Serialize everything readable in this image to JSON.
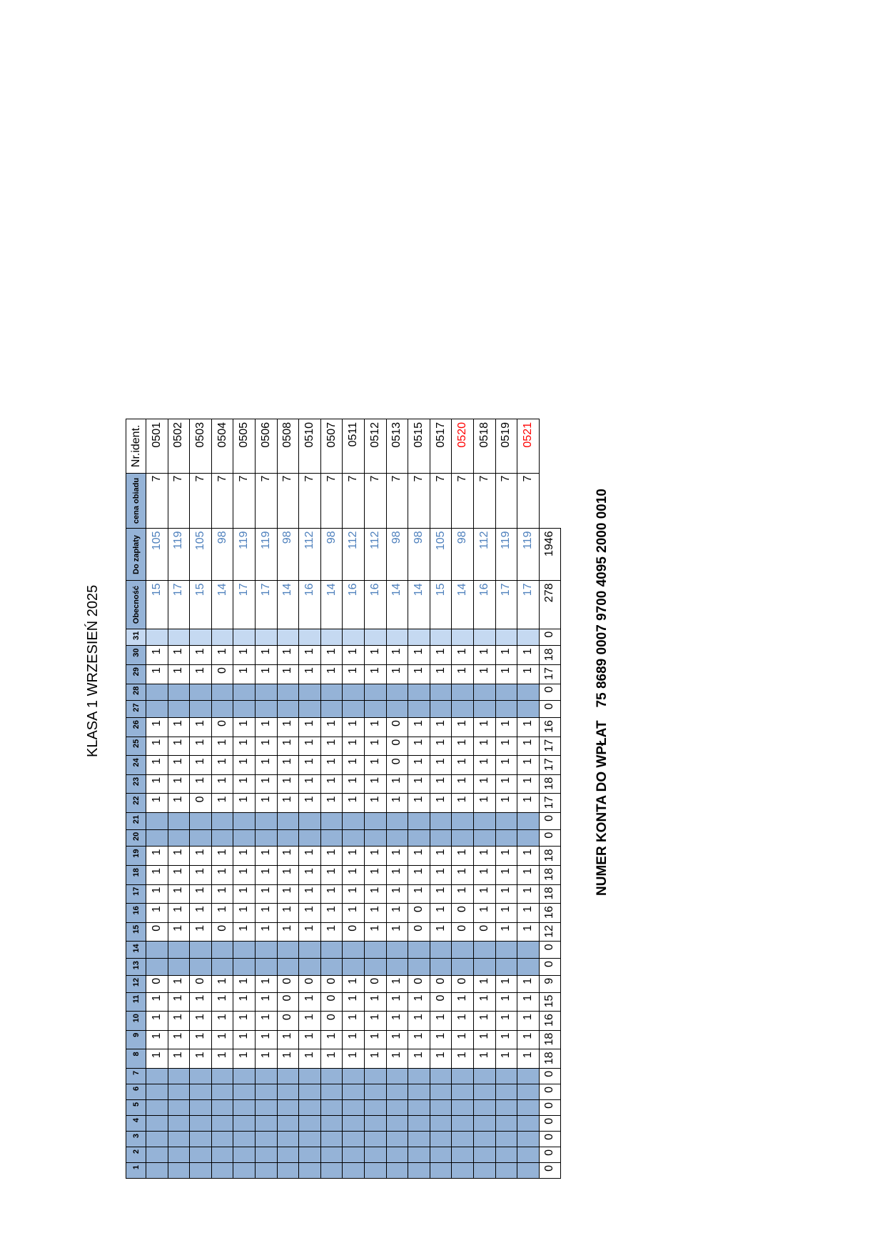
{
  "title": "KLASA 1 WRZESIEŃ 2025",
  "account": {
    "label": "NUMER KONTA  DO WPŁAT",
    "number": "75 8689 0007 9700 4095 2000 0010"
  },
  "colors": {
    "header_blue": "#95b3d7",
    "weekend_blue": "#95b3d7",
    "light_blue": "#c5d9f1",
    "value_blue": "#4f81bd",
    "highlight_red": "#ff0000"
  },
  "table": {
    "headers": {
      "days": [
        "1",
        "2",
        "3",
        "4",
        "5",
        "6",
        "7",
        "8",
        "9",
        "10",
        "11",
        "12",
        "13",
        "14",
        "15",
        "16",
        "17",
        "18",
        "19",
        "20",
        "21",
        "22",
        "23",
        "24",
        "25",
        "26",
        "27",
        "28",
        "29",
        "30",
        "31"
      ],
      "obecnosc": "Obecność",
      "do_zaplaty": "Do zapłaty",
      "cena_obiadu": "cena obiadu",
      "nr_ident": "Nr.ident."
    },
    "off_days": [
      1,
      2,
      3,
      4,
      5,
      6,
      7,
      13,
      14,
      20,
      21,
      27,
      28
    ],
    "light_days": [
      31
    ],
    "rows": [
      {
        "days": [
          "",
          "",
          "",
          "",
          "",
          "",
          "",
          "1",
          "1",
          "1",
          "1",
          "0",
          "",
          "",
          "0",
          "1",
          "1",
          "1",
          "1",
          "",
          "",
          "1",
          "1",
          "1",
          "1",
          "1",
          "",
          "",
          "1",
          "1",
          ""
        ],
        "obecnosc": "15",
        "do_zaplaty": "105",
        "cena": "7",
        "nr": "0501",
        "nr_red": false
      },
      {
        "days": [
          "",
          "",
          "",
          "",
          "",
          "",
          "",
          "1",
          "1",
          "1",
          "1",
          "1",
          "",
          "",
          "1",
          "1",
          "1",
          "1",
          "1",
          "",
          "",
          "1",
          "1",
          "1",
          "1",
          "1",
          "",
          "",
          "1",
          "1",
          ""
        ],
        "obecnosc": "17",
        "do_zaplaty": "119",
        "cena": "7",
        "nr": "0502",
        "nr_red": false
      },
      {
        "days": [
          "",
          "",
          "",
          "",
          "",
          "",
          "",
          "1",
          "1",
          "1",
          "1",
          "0",
          "",
          "",
          "1",
          "1",
          "1",
          "1",
          "1",
          "",
          "",
          "0",
          "1",
          "1",
          "1",
          "1",
          "",
          "",
          "1",
          "1",
          ""
        ],
        "obecnosc": "15",
        "do_zaplaty": "105",
        "cena": "7",
        "nr": "0503",
        "nr_red": false
      },
      {
        "days": [
          "",
          "",
          "",
          "",
          "",
          "",
          "",
          "1",
          "1",
          "1",
          "1",
          "1",
          "",
          "",
          "0",
          "1",
          "1",
          "1",
          "1",
          "",
          "",
          "1",
          "1",
          "1",
          "1",
          "0",
          "",
          "",
          "0",
          "1",
          ""
        ],
        "obecnosc": "14",
        "do_zaplaty": "98",
        "cena": "7",
        "nr": "0504",
        "nr_red": false
      },
      {
        "days": [
          "",
          "",
          "",
          "",
          "",
          "",
          "",
          "1",
          "1",
          "1",
          "1",
          "1",
          "",
          "",
          "1",
          "1",
          "1",
          "1",
          "1",
          "",
          "",
          "1",
          "1",
          "1",
          "1",
          "1",
          "",
          "",
          "1",
          "1",
          ""
        ],
        "obecnosc": "17",
        "do_zaplaty": "119",
        "cena": "7",
        "nr": "0505",
        "nr_red": false
      },
      {
        "days": [
          "",
          "",
          "",
          "",
          "",
          "",
          "",
          "1",
          "1",
          "1",
          "1",
          "1",
          "",
          "",
          "1",
          "1",
          "1",
          "1",
          "1",
          "",
          "",
          "1",
          "1",
          "1",
          "1",
          "1",
          "",
          "",
          "1",
          "1",
          ""
        ],
        "obecnosc": "17",
        "do_zaplaty": "119",
        "cena": "7",
        "nr": "0506",
        "nr_red": false
      },
      {
        "days": [
          "",
          "",
          "",
          "",
          "",
          "",
          "",
          "1",
          "1",
          "0",
          "0",
          "0",
          "",
          "",
          "1",
          "1",
          "1",
          "1",
          "1",
          "",
          "",
          "1",
          "1",
          "1",
          "1",
          "1",
          "",
          "",
          "1",
          "1",
          ""
        ],
        "obecnosc": "14",
        "do_zaplaty": "98",
        "cena": "7",
        "nr": "0508",
        "nr_red": false
      },
      {
        "days": [
          "",
          "",
          "",
          "",
          "",
          "",
          "",
          "1",
          "1",
          "1",
          "1",
          "0",
          "",
          "",
          "1",
          "1",
          "1",
          "1",
          "1",
          "",
          "",
          "1",
          "1",
          "1",
          "1",
          "1",
          "",
          "",
          "1",
          "1",
          ""
        ],
        "obecnosc": "16",
        "do_zaplaty": "112",
        "cena": "7",
        "nr": "0510",
        "nr_red": false
      },
      {
        "days": [
          "",
          "",
          "",
          "",
          "",
          "",
          "",
          "1",
          "1",
          "0",
          "0",
          "0",
          "",
          "",
          "1",
          "1",
          "1",
          "1",
          "1",
          "",
          "",
          "1",
          "1",
          "1",
          "1",
          "1",
          "",
          "",
          "1",
          "1",
          ""
        ],
        "obecnosc": "14",
        "do_zaplaty": "98",
        "cena": "7",
        "nr": "0507",
        "nr_red": false
      },
      {
        "days": [
          "",
          "",
          "",
          "",
          "",
          "",
          "",
          "1",
          "1",
          "1",
          "1",
          "1",
          "",
          "",
          "0",
          "1",
          "1",
          "1",
          "1",
          "",
          "",
          "1",
          "1",
          "1",
          "1",
          "1",
          "",
          "",
          "1",
          "1",
          ""
        ],
        "obecnosc": "16",
        "do_zaplaty": "112",
        "cena": "7",
        "nr": "0511",
        "nr_red": false
      },
      {
        "days": [
          "",
          "",
          "",
          "",
          "",
          "",
          "",
          "1",
          "1",
          "1",
          "1",
          "0",
          "",
          "",
          "1",
          "1",
          "1",
          "1",
          "1",
          "",
          "",
          "1",
          "1",
          "1",
          "1",
          "1",
          "",
          "",
          "1",
          "1",
          ""
        ],
        "obecnosc": "16",
        "do_zaplaty": "112",
        "cena": "7",
        "nr": "0512",
        "nr_red": false
      },
      {
        "days": [
          "",
          "",
          "",
          "",
          "",
          "",
          "",
          "1",
          "1",
          "1",
          "1",
          "1",
          "",
          "",
          "1",
          "1",
          "1",
          "1",
          "1",
          "",
          "",
          "1",
          "1",
          "0",
          "0",
          "0",
          "",
          "",
          "1",
          "1",
          ""
        ],
        "obecnosc": "14",
        "do_zaplaty": "98",
        "cena": "7",
        "nr": "0513",
        "nr_red": false
      },
      {
        "days": [
          "",
          "",
          "",
          "",
          "",
          "",
          "",
          "1",
          "1",
          "1",
          "1",
          "0",
          "",
          "",
          "0",
          "0",
          "1",
          "1",
          "1",
          "",
          "",
          "1",
          "1",
          "1",
          "1",
          "1",
          "",
          "",
          "1",
          "1",
          ""
        ],
        "obecnosc": "14",
        "do_zaplaty": "98",
        "cena": "7",
        "nr": "0515",
        "nr_red": false
      },
      {
        "days": [
          "",
          "",
          "",
          "",
          "",
          "",
          "",
          "1",
          "1",
          "1",
          "0",
          "0",
          "",
          "",
          "1",
          "1",
          "1",
          "1",
          "1",
          "",
          "",
          "1",
          "1",
          "1",
          "1",
          "1",
          "",
          "",
          "1",
          "1",
          ""
        ],
        "obecnosc": "15",
        "do_zaplaty": "105",
        "cena": "7",
        "nr": "0517",
        "nr_red": false
      },
      {
        "days": [
          "",
          "",
          "",
          "",
          "",
          "",
          "",
          "1",
          "1",
          "1",
          "1",
          "0",
          "",
          "",
          "0",
          "0",
          "1",
          "1",
          "1",
          "",
          "",
          "1",
          "1",
          "1",
          "1",
          "1",
          "",
          "",
          "1",
          "1",
          ""
        ],
        "obecnosc": "14",
        "do_zaplaty": "98",
        "cena": "7",
        "nr": "0520",
        "nr_red": true
      },
      {
        "days": [
          "",
          "",
          "",
          "",
          "",
          "",
          "",
          "1",
          "1",
          "1",
          "1",
          "1",
          "",
          "",
          "0",
          "1",
          "1",
          "1",
          "1",
          "",
          "",
          "1",
          "1",
          "1",
          "1",
          "1",
          "",
          "",
          "1",
          "1",
          ""
        ],
        "obecnosc": "16",
        "do_zaplaty": "112",
        "cena": "7",
        "nr": "0518",
        "nr_red": false
      },
      {
        "days": [
          "",
          "",
          "",
          "",
          "",
          "",
          "",
          "1",
          "1",
          "1",
          "1",
          "1",
          "",
          "",
          "1",
          "1",
          "1",
          "1",
          "1",
          "",
          "",
          "1",
          "1",
          "1",
          "1",
          "1",
          "",
          "",
          "1",
          "1",
          ""
        ],
        "obecnosc": "17",
        "do_zaplaty": "119",
        "cena": "7",
        "nr": "0519",
        "nr_red": false
      },
      {
        "days": [
          "",
          "",
          "",
          "",
          "",
          "",
          "",
          "1",
          "1",
          "1",
          "1",
          "1",
          "",
          "",
          "1",
          "1",
          "1",
          "1",
          "1",
          "",
          "",
          "1",
          "1",
          "1",
          "1",
          "1",
          "",
          "",
          "1",
          "1",
          ""
        ],
        "obecnosc": "17",
        "do_zaplaty": "119",
        "cena": "7",
        "nr": "0521",
        "nr_red": true
      }
    ],
    "totals": {
      "days": [
        "0",
        "0",
        "0",
        "0",
        "0",
        "0",
        "0",
        "18",
        "18",
        "16",
        "15",
        "9",
        "0",
        "0",
        "12",
        "16",
        "18",
        "18",
        "18",
        "0",
        "0",
        "17",
        "18",
        "17",
        "17",
        "16",
        "0",
        "0",
        "17",
        "18",
        "0"
      ],
      "obecnosc": "278",
      "do_zaplaty": "1946"
    }
  }
}
